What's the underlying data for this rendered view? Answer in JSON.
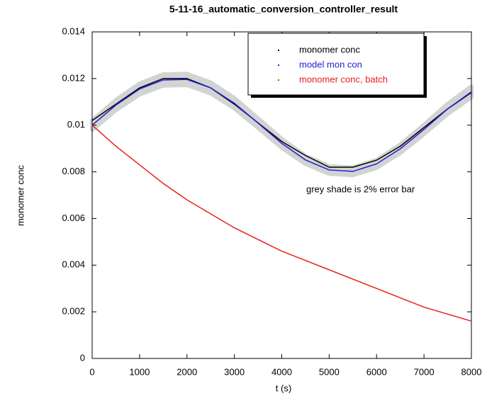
{
  "chart_data": {
    "type": "line",
    "title": "5-11-16_automatic_conversion_controller_result",
    "x_label": "t (s)",
    "y_label": "monomer conc",
    "annotation": "grey shade is 2% error bar",
    "error_band_percent": 2,
    "error_band_color": "#d3d3d3",
    "x": [
      0,
      500,
      1000,
      1500,
      2000,
      2500,
      3000,
      3500,
      4000,
      4500,
      5000,
      5500,
      6000,
      6500,
      7000,
      7500,
      8000
    ],
    "series": [
      {
        "name": "monomer conc",
        "color": "#000000",
        "values": [
          0.0102,
          0.0109,
          0.0116,
          0.012,
          0.012,
          0.0116,
          0.0109,
          0.0101,
          0.0093,
          0.0087,
          0.0082,
          0.0082,
          0.0085,
          0.0091,
          0.0099,
          0.0107,
          0.0114
        ]
      },
      {
        "name": "model mon con",
        "color": "#1f1fd0",
        "values": [
          0.01,
          0.01086,
          0.01155,
          0.01194,
          0.01196,
          0.0116,
          0.01094,
          0.01009,
          0.00922,
          0.00851,
          0.00808,
          0.00802,
          0.00834,
          0.00899,
          0.00982,
          0.0107,
          0.01143
        ]
      },
      {
        "name": "monomer conc, batch",
        "color": "#e8201a",
        "values": [
          0.01,
          0.0091,
          0.0083,
          0.0075,
          0.0068,
          0.0062,
          0.0056,
          0.0051,
          0.0046,
          0.0042,
          0.0038,
          0.0034,
          0.003,
          0.0026,
          0.0022,
          0.0019,
          0.0016
        ]
      }
    ],
    "xlim": [
      0,
      8000
    ],
    "xticks": [
      0,
      1000,
      2000,
      3000,
      4000,
      5000,
      6000,
      7000,
      8000
    ],
    "ylim": [
      0,
      0.014
    ],
    "yticks": [
      0,
      0.002,
      0.004,
      0.006,
      0.008,
      0.01,
      0.012,
      0.014
    ],
    "grid": false,
    "legend": "upper right"
  }
}
